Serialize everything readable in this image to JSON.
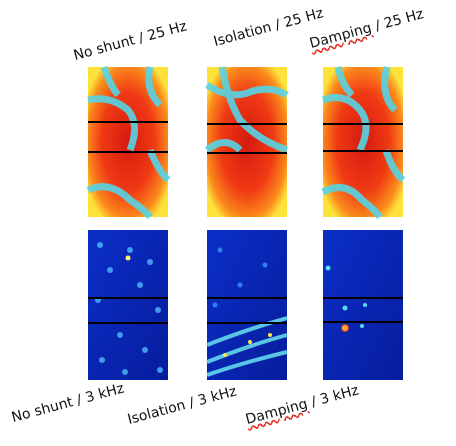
{
  "top_labels": [
    {
      "prefix": "No shunt",
      "suffix": " / 25 Hz",
      "underline_prefix": false
    },
    {
      "prefix": "Isolation",
      "suffix": " / 25 Hz",
      "underline_prefix": false
    },
    {
      "prefix": "Damping",
      "suffix": " / 25 Hz",
      "underline_prefix": true
    }
  ],
  "bottom_labels": [
    {
      "prefix": "No shunt",
      "suffix": " / 3 kHz",
      "underline_prefix": false
    },
    {
      "prefix": "Isolation",
      "suffix": " / 3 kHz",
      "underline_prefix": false
    },
    {
      "prefix": "Damping",
      "suffix": " / 3 kHz",
      "underline_prefix": true
    }
  ],
  "colors": {
    "low": "#0a1fb5",
    "mid": "#45d6e6",
    "high": "#e8281a",
    "spellcheck": "#e0201b"
  }
}
